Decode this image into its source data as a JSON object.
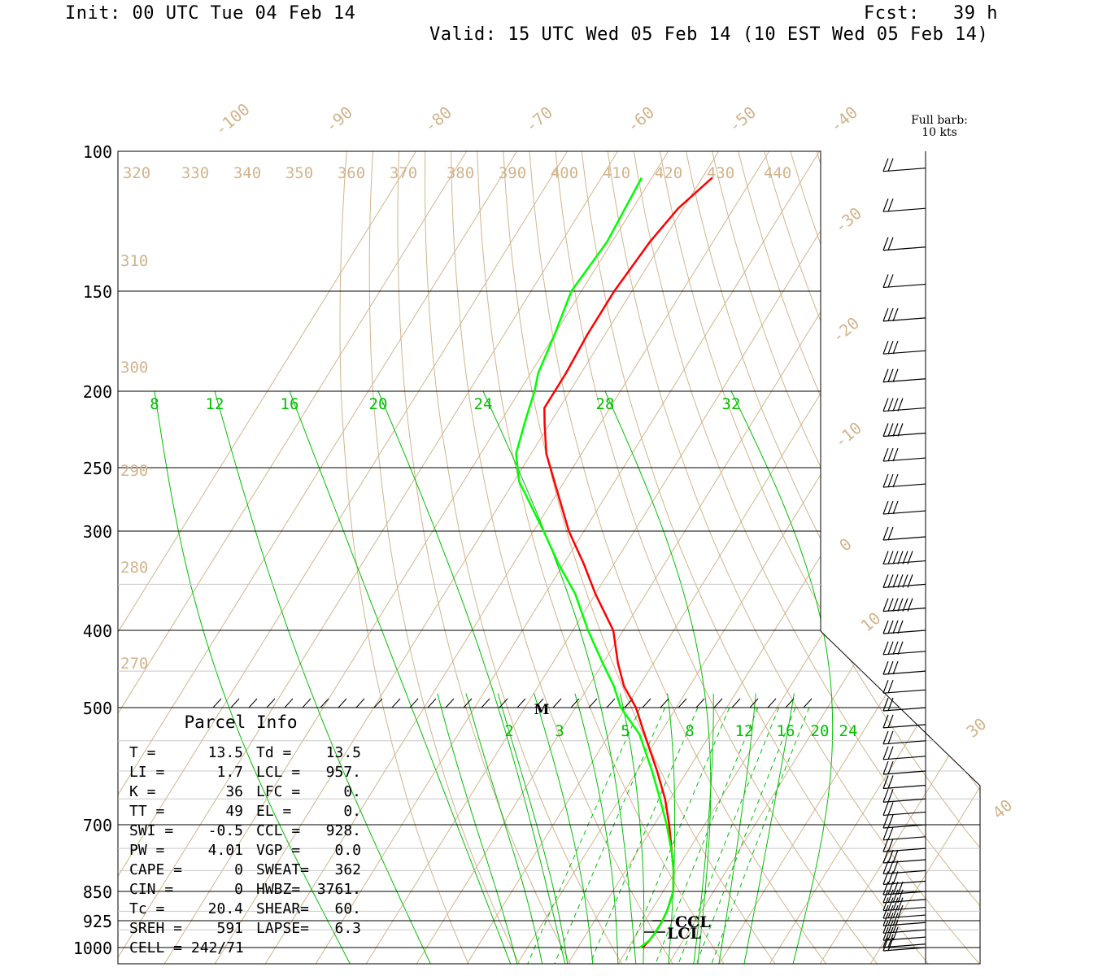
{
  "header": {
    "init": "Init: 00 UTC Tue 04 Feb 14",
    "fcst": "Fcst:   39 h",
    "valid": "Valid: 15 UTC Wed 05 Feb 14 (10 EST Wed 05 Feb 14)"
  },
  "barb_legend": {
    "line1": "Full barb:",
    "line2": "10 kts"
  },
  "parcel_info": {
    "title": "Parcel Info",
    "rows": [
      {
        "l": "T  =",
        "lv": "13.5",
        "r": "Td =",
        "rv": "13.5"
      },
      {
        "l": "LI =",
        "lv": "1.7",
        "r": "LCL =",
        "rv": "957."
      },
      {
        "l": "K  =",
        "lv": "36",
        "r": "LFC =",
        "rv": "0."
      },
      {
        "l": "TT =",
        "lv": "49",
        "r": "EL  =",
        "rv": "0."
      },
      {
        "l": "SWI =",
        "lv": "-0.5",
        "r": "CCL =",
        "rv": "928."
      },
      {
        "l": "PW =",
        "lv": "4.01",
        "r": "VGP =",
        "rv": "0.0"
      },
      {
        "l": "CAPE =",
        "lv": "0",
        "r": "SWEAT=",
        "rv": "362"
      },
      {
        "l": "CIN =",
        "lv": "0",
        "r": "HWBZ=",
        "rv": "3761."
      },
      {
        "l": "Tc =",
        "lv": "20.4",
        "r": "SHEAR=",
        "rv": "60."
      },
      {
        "l": "SREH =",
        "lv": "591",
        "r": "LAPSE=",
        "rv": "6.3"
      },
      {
        "l": "CELL = 242/71",
        "lv": "",
        "r": "",
        "rv": ""
      }
    ]
  },
  "level_labels": {
    "ccl": "CCL",
    "lcl": "LCL",
    "marker": "M"
  },
  "colors": {
    "temperature": "#ff0000",
    "dewpoint": "#00ff00",
    "mixing_ratio": "#00c000",
    "isotherm": "#d2b48c",
    "dry_adiabat": "#d2b48c",
    "moist_adiabat": "#00c000",
    "grid": "#000000"
  },
  "chart_data": {
    "type": "line",
    "chart_kind": "skew-T log-P sounding",
    "pressure_ticks": [
      "100",
      "150",
      "200",
      "250",
      "300",
      "400",
      "500",
      "700",
      "850",
      "925",
      "1000"
    ],
    "pressure_levels": [
      100,
      150,
      200,
      250,
      300,
      400,
      500,
      700,
      850,
      925,
      1000
    ],
    "isotherm_labels": [
      "-100",
      "-90",
      "-80",
      "-70",
      "-60",
      "-50",
      "-40",
      "-30",
      "-20",
      "-10",
      "0",
      "10",
      "30",
      "40"
    ],
    "isotherm_values": [
      -100,
      -90,
      -80,
      -70,
      -60,
      -50,
      -40,
      -30,
      -20,
      -10,
      0,
      10,
      30,
      40
    ],
    "theta_labels_top": [
      "320",
      "330",
      "340",
      "350",
      "360",
      "370",
      "380",
      "390",
      "400",
      "410",
      "420",
      "430",
      "440"
    ],
    "theta_labels_left": [
      "310",
      "300",
      "290",
      "280",
      "270"
    ],
    "mixing_ratio_labels_upper": [
      "8",
      "12",
      "16",
      "20",
      "24",
      "28",
      "32"
    ],
    "mixing_ratio_labels_lower": [
      "2",
      "3",
      "5",
      "8",
      "12",
      "16",
      "20",
      "24"
    ],
    "series": [
      {
        "name": "Temperature",
        "p": [
          108,
          118,
          130,
          150,
          170,
          190,
          200,
          210,
          220,
          240,
          260,
          300,
          330,
          360,
          400,
          440,
          470,
          500,
          540,
          600,
          650,
          700,
          760,
          800,
          850,
          900,
          930,
          960,
          980,
          1000
        ],
        "t": [
          -68,
          -71,
          -72.5,
          -73.5,
          -73.5,
          -73,
          -73,
          -73,
          -71,
          -67,
          -62,
          -53,
          -46,
          -40,
          -32,
          -27,
          -23,
          -18,
          -13,
          -6,
          -1,
          3,
          7,
          9.5,
          12,
          13.2,
          13.5,
          13.5,
          13.3,
          12.8
        ]
      },
      {
        "name": "Dewpoint",
        "p": [
          108,
          130,
          150,
          170,
          190,
          200,
          210,
          220,
          240,
          260,
          300,
          330,
          360,
          400,
          440,
          470,
          500,
          540,
          600,
          650,
          700,
          760,
          800,
          850,
          900,
          930,
          960,
          980,
          1000
        ],
        "t": [
          -82,
          -81,
          -82,
          -80,
          -78.5,
          -77,
          -76,
          -75,
          -73,
          -69,
          -58,
          -51,
          -44,
          -37,
          -30,
          -25,
          -21,
          -14,
          -7,
          -2,
          2.5,
          7,
          9.5,
          12,
          13.2,
          13.5,
          13.5,
          13.3,
          12.3
        ]
      }
    ],
    "wind_barbs": {
      "p": [
        105,
        118,
        132,
        147,
        162,
        178,
        193,
        210,
        226,
        243,
        262,
        283,
        305,
        327,
        350,
        375,
        400,
        425,
        450,
        475,
        500,
        525,
        550,
        575,
        600,
        625,
        650,
        675,
        700,
        725,
        750,
        775,
        800,
        825,
        850,
        870,
        890,
        910,
        930,
        950,
        970,
        990,
        1000
      ],
      "speed_kt": [
        20,
        20,
        20,
        20,
        30,
        30,
        30,
        40,
        40,
        30,
        30,
        30,
        20,
        60,
        60,
        60,
        40,
        40,
        30,
        20,
        20,
        20,
        20,
        20,
        20,
        20,
        20,
        20,
        20,
        20,
        20,
        30,
        30,
        30,
        40,
        40,
        40,
        40,
        30,
        30,
        30,
        20,
        20
      ]
    }
  }
}
